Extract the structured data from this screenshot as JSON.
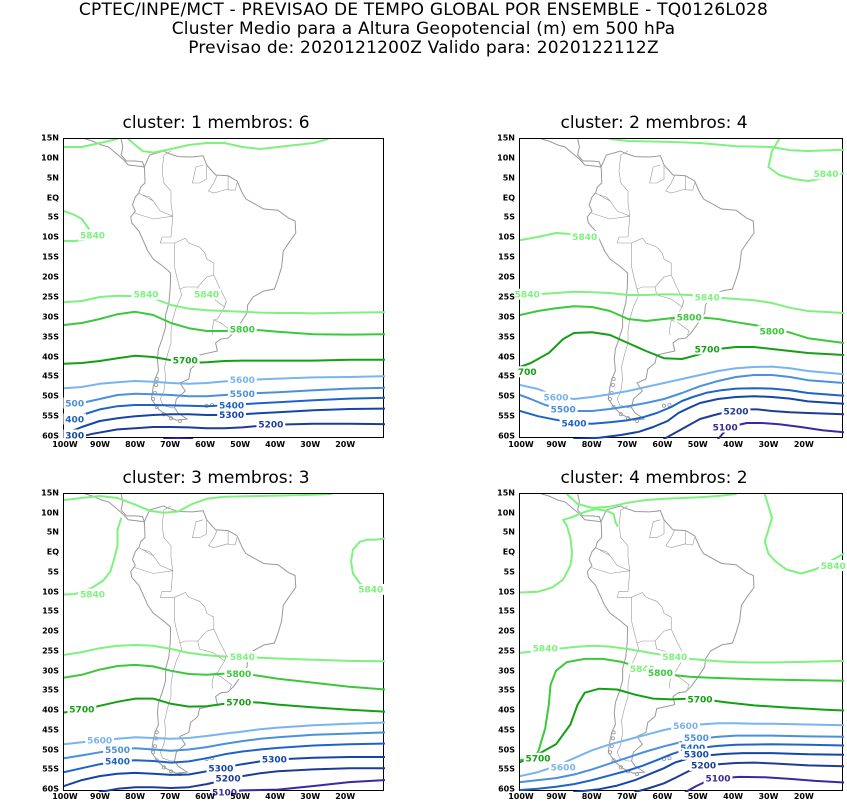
{
  "header": {
    "line1": "CPTEC/INPE/MCT - PREVISAO DE TEMPO GLOBAL POR ENSEMBLE - TQ0126L028",
    "line2": "Cluster Medio para a Altura Geopotencial (m) em 500 hPa",
    "line3": "Previsao de: 2020121200Z   Valido para: 2020122112Z"
  },
  "axes": {
    "lat_labels": [
      "15N",
      "10N",
      "5N",
      "EQ",
      "5S",
      "10S",
      "15S",
      "20S",
      "25S",
      "30S",
      "35S",
      "40S",
      "45S",
      "50S",
      "55S",
      "60S"
    ],
    "lon_labels": [
      "100W",
      "90W",
      "80W",
      "70W",
      "60W",
      "50W",
      "40W",
      "30W",
      "20W"
    ]
  },
  "colors": {
    "c5840": "#7ef27e",
    "c5800": "#3cc83c",
    "c5700": "#14a014",
    "c5600": "#78b4f0",
    "c5500": "#4a90dc",
    "c5400": "#1e64c8",
    "c5300": "#1446aa",
    "c5200": "#1e3c96",
    "c5100": "#3c28a0",
    "land": "#999999"
  },
  "panels": [
    {
      "title": "cluster: 1  membros: 6",
      "contour_labels": [
        "5840",
        "5840",
        "5840",
        "5800",
        "5700",
        "5600",
        "5500",
        "5400",
        "5300",
        "5200",
        "500",
        "400",
        "300"
      ]
    },
    {
      "title": "cluster: 2  membros: 4",
      "contour_labels": [
        "5840",
        "5840",
        "5840",
        "5840",
        "5800",
        "5800",
        "5700",
        "700",
        "5600",
        "5500",
        "5400",
        "5200",
        "5100"
      ]
    },
    {
      "title": "cluster: 3  membros: 3",
      "contour_labels": [
        "5840",
        "5840",
        "5840",
        "5800",
        "5700",
        "5700",
        "5600",
        "5500",
        "5400",
        "5300",
        "5300",
        "5200",
        "5100"
      ]
    },
    {
      "title": "cluster: 4  membros: 2",
      "contour_labels": [
        "5840",
        "5840",
        "5840",
        "5840",
        "5800",
        "5700",
        "5700",
        "5600",
        "5600",
        "5500",
        "5400",
        "5300",
        "5200",
        "5100"
      ]
    }
  ]
}
